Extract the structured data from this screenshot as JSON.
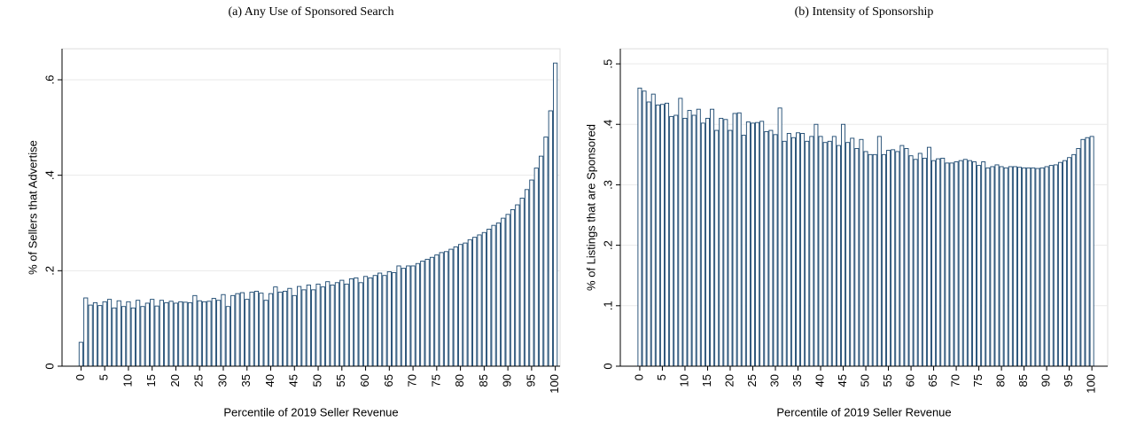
{
  "chart_data": [
    {
      "type": "bar",
      "title": "(a) Any Use of Sponsored Search",
      "xlabel": "Percentile of 2019 Seller Revenue",
      "ylabel": "% of Sellers that Advertise",
      "color": "#1a476f",
      "x": [
        0,
        1,
        2,
        3,
        4,
        5,
        6,
        7,
        8,
        9,
        10,
        11,
        12,
        13,
        14,
        15,
        16,
        17,
        18,
        19,
        20,
        21,
        22,
        23,
        24,
        25,
        26,
        27,
        28,
        29,
        30,
        31,
        32,
        33,
        34,
        35,
        36,
        37,
        38,
        39,
        40,
        41,
        42,
        43,
        44,
        45,
        46,
        47,
        48,
        49,
        50,
        51,
        52,
        53,
        54,
        55,
        56,
        57,
        58,
        59,
        60,
        61,
        62,
        63,
        64,
        65,
        66,
        67,
        68,
        69,
        70,
        71,
        72,
        73,
        74,
        75,
        76,
        77,
        78,
        79,
        80,
        81,
        82,
        83,
        84,
        85,
        86,
        87,
        88,
        89,
        90,
        91,
        92,
        93,
        94,
        95,
        96,
        97,
        98,
        99,
        100
      ],
      "values": [
        0.05,
        0.143,
        0.128,
        0.133,
        0.127,
        0.135,
        0.14,
        0.122,
        0.137,
        0.125,
        0.135,
        0.122,
        0.138,
        0.125,
        0.132,
        0.14,
        0.126,
        0.138,
        0.133,
        0.136,
        0.132,
        0.135,
        0.134,
        0.133,
        0.148,
        0.137,
        0.135,
        0.136,
        0.142,
        0.138,
        0.15,
        0.125,
        0.148,
        0.152,
        0.154,
        0.14,
        0.155,
        0.157,
        0.153,
        0.138,
        0.152,
        0.166,
        0.155,
        0.157,
        0.163,
        0.148,
        0.167,
        0.16,
        0.17,
        0.16,
        0.172,
        0.166,
        0.177,
        0.17,
        0.175,
        0.18,
        0.172,
        0.183,
        0.185,
        0.175,
        0.188,
        0.185,
        0.19,
        0.195,
        0.19,
        0.198,
        0.196,
        0.21,
        0.205,
        0.21,
        0.21,
        0.215,
        0.22,
        0.224,
        0.228,
        0.233,
        0.238,
        0.24,
        0.245,
        0.25,
        0.255,
        0.258,
        0.265,
        0.27,
        0.275,
        0.28,
        0.287,
        0.295,
        0.3,
        0.31,
        0.318,
        0.328,
        0.338,
        0.352,
        0.37,
        0.39,
        0.415,
        0.44,
        0.48,
        0.535,
        0.635
      ],
      "xlim": [
        -4,
        101
      ],
      "xticks": [
        0,
        5,
        10,
        15,
        20,
        25,
        30,
        35,
        40,
        45,
        50,
        55,
        60,
        65,
        70,
        75,
        80,
        85,
        90,
        95,
        100
      ],
      "ylim": [
        0,
        0.665
      ],
      "yticks": [
        0,
        {
          "value": 0.2,
          "label": ".2"
        },
        {
          "value": 0.4,
          "label": ".4"
        },
        {
          "value": 0.6,
          "label": ".6"
        }
      ],
      "grid": true
    },
    {
      "type": "bar",
      "title": "(b) Intensity of Sponsorship",
      "xlabel": "Percentile of 2019 Seller Revenue",
      "ylabel": "% of Listings that are Sponsored",
      "color": "#1a476f",
      "x": [
        0,
        1,
        2,
        3,
        4,
        5,
        6,
        7,
        8,
        9,
        10,
        11,
        12,
        13,
        14,
        15,
        16,
        17,
        18,
        19,
        20,
        21,
        22,
        23,
        24,
        25,
        26,
        27,
        28,
        29,
        30,
        31,
        32,
        33,
        34,
        35,
        36,
        37,
        38,
        39,
        40,
        41,
        42,
        43,
        44,
        45,
        46,
        47,
        48,
        49,
        50,
        51,
        52,
        53,
        54,
        55,
        56,
        57,
        58,
        59,
        60,
        61,
        62,
        63,
        64,
        65,
        66,
        67,
        68,
        69,
        70,
        71,
        72,
        73,
        74,
        75,
        76,
        77,
        78,
        79,
        80,
        81,
        82,
        83,
        84,
        85,
        86,
        87,
        88,
        89,
        90,
        91,
        92,
        93,
        94,
        95,
        96,
        97,
        98,
        99,
        100
      ],
      "values": [
        0.46,
        0.455,
        0.437,
        0.45,
        0.432,
        0.433,
        0.435,
        0.413,
        0.415,
        0.443,
        0.41,
        0.423,
        0.415,
        0.425,
        0.402,
        0.41,
        0.425,
        0.39,
        0.41,
        0.408,
        0.39,
        0.418,
        0.419,
        0.382,
        0.404,
        0.402,
        0.403,
        0.405,
        0.388,
        0.39,
        0.383,
        0.427,
        0.372,
        0.385,
        0.378,
        0.386,
        0.385,
        0.372,
        0.38,
        0.4,
        0.38,
        0.37,
        0.372,
        0.38,
        0.365,
        0.4,
        0.37,
        0.377,
        0.36,
        0.375,
        0.355,
        0.35,
        0.35,
        0.38,
        0.35,
        0.357,
        0.358,
        0.355,
        0.365,
        0.36,
        0.348,
        0.342,
        0.352,
        0.344,
        0.362,
        0.34,
        0.343,
        0.344,
        0.336,
        0.336,
        0.338,
        0.34,
        0.342,
        0.34,
        0.338,
        0.332,
        0.338,
        0.328,
        0.33,
        0.333,
        0.33,
        0.328,
        0.33,
        0.33,
        0.329,
        0.328,
        0.328,
        0.328,
        0.327,
        0.328,
        0.33,
        0.332,
        0.333,
        0.337,
        0.34,
        0.345,
        0.35,
        0.36,
        0.375,
        0.378,
        0.38
      ],
      "xlim": [
        -4.3,
        103.5
      ],
      "xticks": [
        0,
        5,
        10,
        15,
        20,
        25,
        30,
        35,
        40,
        45,
        50,
        55,
        60,
        65,
        70,
        75,
        80,
        85,
        90,
        95,
        100
      ],
      "ylim": [
        0,
        0.525
      ],
      "yticks": [
        0,
        {
          "value": 0.1,
          "label": ".1"
        },
        {
          "value": 0.2,
          "label": ".2"
        },
        {
          "value": 0.3,
          "label": ".3"
        },
        {
          "value": 0.4,
          "label": ".4"
        },
        {
          "value": 0.5,
          "label": ".5"
        }
      ],
      "grid": true
    }
  ]
}
